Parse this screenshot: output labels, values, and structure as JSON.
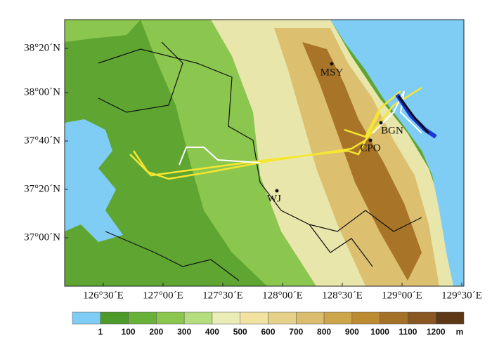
{
  "lat_labels": [
    "38°20´N",
    "38°00´N",
    "37°40´N",
    "37°20´N",
    "37°00´N"
  ],
  "lon_labels": [
    "126°30´E",
    "127°00´E",
    "127°30´E",
    "128°00´E",
    "128°30´E",
    "129°00´E",
    "129°30´E"
  ],
  "stations": [
    "MSY",
    "BGN",
    "CPO",
    "WJ"
  ],
  "colorbar": {
    "levels": [
      1,
      100,
      200,
      300,
      400,
      500,
      600,
      700,
      800,
      900,
      1000,
      1100,
      1200
    ],
    "unit": "m",
    "colors": [
      "#7fcdf4",
      "#4e9a2b",
      "#69b23a",
      "#8bc64f",
      "#b5dd7f",
      "#ebedb6",
      "#f2e3a3",
      "#e5d189",
      "#dabd6e",
      "#cda54b",
      "#bc8c32",
      "#a47129",
      "#885722",
      "#5e3716"
    ]
  }
}
